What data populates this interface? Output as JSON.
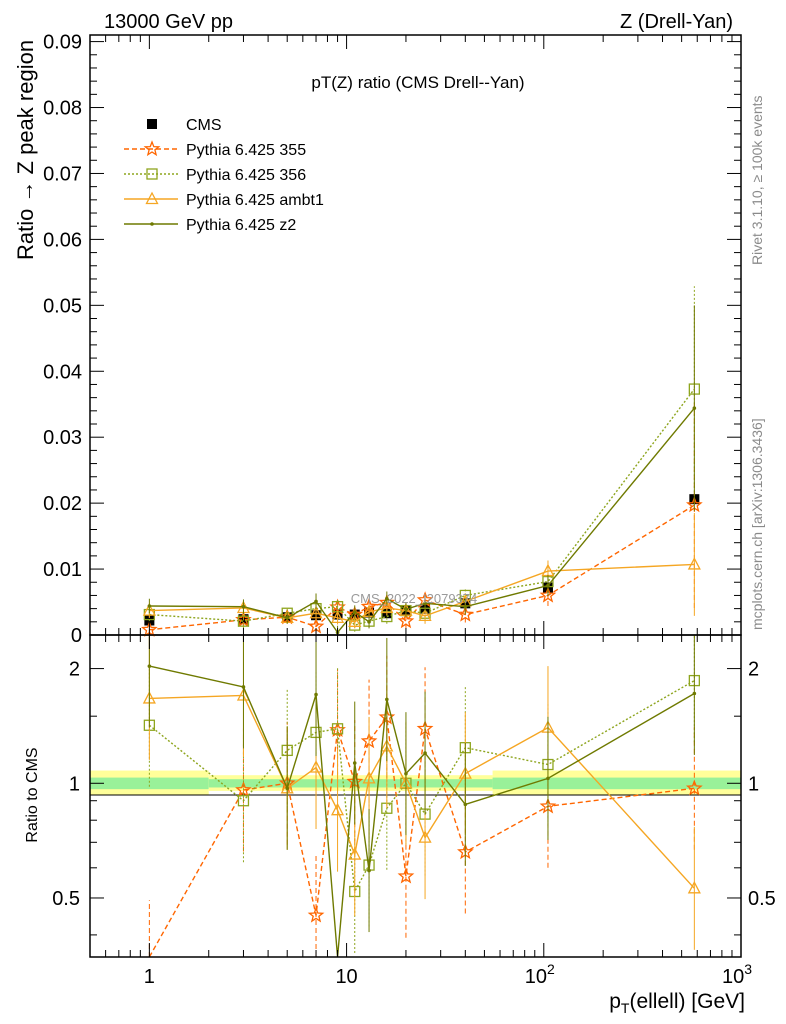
{
  "header": {
    "left": "13000 GeV pp",
    "right": "Z (Drell-Yan)"
  },
  "side_labels": {
    "rivet": "Rivet 3.1.10, ≥ 100k events",
    "mcplots": "mcplots.cern.ch [arXiv:1306.3436]"
  },
  "chart_data": {
    "type": "line",
    "title": "pT(Z) ratio (CMS Drell--Yan)",
    "watermark": "CMS_2022_I2079374",
    "x_scale": "log",
    "xlim": [
      0.5,
      1000
    ],
    "xlabel": "p_T(ellell) [GeV]",
    "xlabel_main": "p",
    "xlabel_sub": "T",
    "xlabel_rest": "(ellell) [GeV]",
    "x_ticks": [
      {
        "value": 1,
        "label": "1"
      },
      {
        "value": 10,
        "label": "10"
      },
      {
        "value": 100,
        "label": "10",
        "sup": "2"
      },
      {
        "value": 1000,
        "label": "10",
        "sup": "3"
      }
    ],
    "legend_position": "top-left",
    "main": {
      "ylabel": "Ratio → Z peak region",
      "ylim": [
        0,
        0.091
      ],
      "y_ticks": [
        "0",
        "0.01",
        "0.02",
        "0.03",
        "0.04",
        "0.05",
        "0.06",
        "0.07",
        "0.08",
        "0.09"
      ],
      "y_tick_values": [
        0,
        0.01,
        0.02,
        0.03,
        0.04,
        0.05,
        0.06,
        0.07,
        0.08,
        0.09
      ],
      "x": [
        1,
        3,
        5,
        7,
        9,
        11,
        13,
        16,
        20,
        25,
        40,
        105,
        580
      ],
      "series": [
        {
          "name": "CMS",
          "style": "data",
          "color": "#000000",
          "values": [
            0.0022,
            0.0024,
            0.0027,
            0.003,
            0.0031,
            0.0031,
            0.0034,
            0.0033,
            0.0037,
            0.004,
            0.0048,
            0.0072,
            0.0206
          ]
        },
        {
          "name": "Pythia 6.425 355",
          "style": "star-dashed",
          "color": "#ff6600",
          "values": [
            0.0008,
            0.0023,
            0.0027,
            0.0013,
            0.0042,
            0.0031,
            0.0043,
            0.0049,
            0.0021,
            0.0053,
            0.0031,
            0.006,
            0.0197
          ]
        },
        {
          "name": "Pythia 6.425 356",
          "style": "square-dotted",
          "color": "#8ea51e",
          "values": [
            0.0031,
            0.0021,
            0.0033,
            0.004,
            0.0043,
            0.0015,
            0.0021,
            0.0028,
            0.0037,
            0.0033,
            0.006,
            0.0081,
            0.0373
          ]
        },
        {
          "name": "Pythia 6.425 ambt1",
          "style": "triangle-solid",
          "color": "#f5a623",
          "values": [
            0.0037,
            0.0041,
            0.0026,
            0.0033,
            0.0026,
            0.002,
            0.0035,
            0.0041,
            0.0037,
            0.0029,
            0.0051,
            0.0097,
            0.0107
          ]
        },
        {
          "name": "Pythia 6.425 z2",
          "style": "dot-solid",
          "color": "#6f7a00",
          "values": [
            0.0044,
            0.0043,
            0.0026,
            0.0051,
            0.0004,
            0.0035,
            0.002,
            0.0055,
            0.0039,
            0.0048,
            0.0043,
            0.0075,
            0.0344
          ]
        }
      ]
    },
    "ratio": {
      "ylabel": "Ratio to CMS",
      "y_scale": "log",
      "ylim": [
        0.35,
        2.45
      ],
      "y_ticks": [
        "0.5",
        "1",
        "2"
      ],
      "y_tick_values": [
        0.5,
        1,
        2
      ],
      "bands": [
        {
          "x_from": 0.5,
          "x_to": 2,
          "inner": [
            0.965,
            1.035
          ],
          "outer": [
            0.93,
            1.08
          ]
        },
        {
          "x_from": 2,
          "x_to": 55,
          "inner": [
            0.975,
            1.025
          ],
          "outer": [
            0.955,
            1.05
          ]
        },
        {
          "x_from": 55,
          "x_to": 1000,
          "inner": [
            0.965,
            1.035
          ],
          "outer": [
            0.93,
            1.08
          ]
        }
      ],
      "series": [
        {
          "name": "Pythia 6.425 355",
          "values": [
            0.34,
            0.96,
            1.0,
            0.45,
            1.38,
            1.01,
            1.29,
            1.49,
            0.57,
            1.39,
            0.66,
            0.87,
            0.97
          ]
        },
        {
          "name": "Pythia 6.425 356",
          "values": [
            1.42,
            0.9,
            1.22,
            1.36,
            1.39,
            0.52,
            0.61,
            0.86,
            1.0,
            0.83,
            1.24,
            1.12,
            1.86
          ]
        },
        {
          "name": "Pythia 6.425 ambt1",
          "values": [
            1.67,
            1.7,
            0.97,
            1.1,
            0.85,
            0.65,
            1.03,
            1.25,
            1.0,
            0.72,
            1.06,
            1.4,
            0.53
          ]
        },
        {
          "name": "Pythia 6.425 z2",
          "values": [
            2.03,
            1.79,
            0.97,
            1.71,
            0.13,
            1.13,
            0.59,
            1.66,
            1.06,
            1.2,
            0.88,
            1.03,
            1.72
          ]
        }
      ]
    }
  }
}
